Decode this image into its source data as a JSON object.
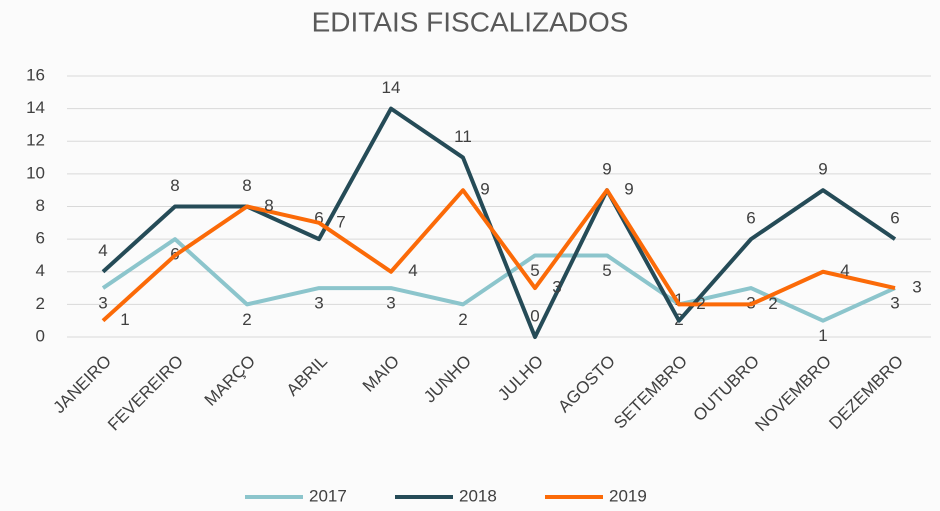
{
  "chart_data": {
    "type": "line",
    "title": "EDITAIS FISCALIZADOS",
    "categories": [
      "JANEIRO",
      "FEVEREIRO",
      "MARÇO",
      "ABRIL",
      "MAIO",
      "JUNHO",
      "JULHO",
      "AGOSTO",
      "SETEMBRO",
      "OUTUBRO",
      "NOVEMBRO",
      "DEZEMBRO"
    ],
    "series": [
      {
        "name": "2017",
        "color": "#8cc5cc",
        "values": [
          3,
          6,
          2,
          3,
          3,
          2,
          5,
          5,
          2,
          3,
          1,
          3
        ]
      },
      {
        "name": "2018",
        "color": "#254b57",
        "values": [
          4,
          8,
          8,
          6,
          14,
          11,
          0,
          9,
          1,
          6,
          9,
          6
        ]
      },
      {
        "name": "2019",
        "color": "#fb6a08",
        "values": [
          1,
          5,
          8,
          7,
          4,
          9,
          3,
          9,
          2,
          2,
          4,
          3
        ],
        "value_labels": [
          "1",
          null,
          "8",
          "7",
          "4",
          "9",
          "3",
          "9",
          "2",
          "2",
          "4",
          "3"
        ]
      }
    ],
    "ylim": [
      0,
      16
    ],
    "yticks": [
      0,
      2,
      4,
      6,
      8,
      10,
      12,
      14,
      16
    ],
    "grid": true,
    "legend": "bottom"
  }
}
